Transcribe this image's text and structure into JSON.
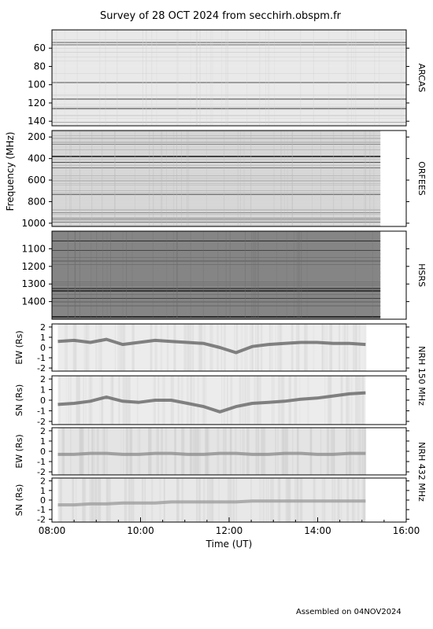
{
  "title": "Survey of 28 OCT 2024 from secchirh.obspm.fr",
  "footer": "Assembled on 04NOV2024",
  "chart_data": {
    "type": "heatmap",
    "title": "Survey of 28 OCT 2024 from secchirh.obspm.fr",
    "xlabel": "Time (UT)",
    "xlim": [
      "08:00",
      "16:00"
    ],
    "xticks": [
      "08:00",
      "10:00",
      "12:00",
      "14:00",
      "16:00"
    ],
    "freq_ylabel": "Frequency (MHz)",
    "panels": [
      {
        "id": "arcas",
        "side_label": "ARCAS",
        "ylim": [
          40,
          145
        ],
        "yticks": [
          "60",
          "80",
          "100",
          "120",
          "140"
        ],
        "data_end": "16:00",
        "colors": {
          "base": "#e9e9e9",
          "alt": "#d4d4d4",
          "dark": "#777777"
        }
      },
      {
        "id": "orfees",
        "side_label": "ORFEES",
        "ylim": [
          140,
          1030
        ],
        "yticks": [
          "200",
          "400",
          "600",
          "800",
          "1000"
        ],
        "data_end": "15:25",
        "colors": {
          "base": "#d6d6d6",
          "alt": "#b9b9b9",
          "dark": "#3a3a3a"
        }
      },
      {
        "id": "hsrs",
        "side_label": "HSRS",
        "ylim": [
          1000,
          1500
        ],
        "yticks": [
          "1100",
          "1200",
          "1300",
          "1400"
        ],
        "data_end": "15:25",
        "colors": {
          "base": "#858585",
          "alt": "#6e6e6e",
          "dark": "#2b2b2b"
        }
      },
      {
        "id": "nrh150_ew",
        "ylabel": "EW (Rs)",
        "ylim": [
          -2.3,
          2.3
        ],
        "yticks": [
          "2",
          "1",
          "0",
          "-1",
          "-2"
        ],
        "data_start": "08:08",
        "data_end": "15:05",
        "track": [
          0.6,
          0.7,
          0.5,
          0.8,
          0.3,
          0.5,
          0.7,
          0.6,
          0.5,
          0.4,
          0.0,
          -0.5,
          0.1,
          0.3,
          0.4,
          0.5,
          0.5,
          0.4,
          0.4,
          0.3
        ],
        "colors": {
          "base": "#ececec",
          "alt": "#dddddd",
          "dark": "#5c5c5c"
        }
      },
      {
        "id": "nrh150_sn",
        "ylabel": "SN (Rs)",
        "ylim": [
          -2.3,
          2.3
        ],
        "yticks": [
          "2",
          "1",
          "0",
          "-1",
          "-2"
        ],
        "data_start": "08:08",
        "data_end": "15:05",
        "track": [
          -0.4,
          -0.3,
          -0.1,
          0.3,
          -0.1,
          -0.2,
          0.0,
          0.0,
          -0.3,
          -0.6,
          -1.1,
          -0.6,
          -0.3,
          -0.2,
          -0.1,
          0.1,
          0.2,
          0.4,
          0.6,
          0.7
        ],
        "colors": {
          "base": "#ececec",
          "alt": "#dddddd",
          "dark": "#5c5c5c"
        }
      },
      {
        "id": "nrh432_ew",
        "ylabel": "EW (Rs)",
        "ylim": [
          -2.3,
          2.3
        ],
        "yticks": [
          "2",
          "1",
          "0",
          "-1",
          "-2"
        ],
        "data_start": "08:08",
        "data_end": "15:05",
        "track": [
          -0.3,
          -0.3,
          -0.2,
          -0.2,
          -0.3,
          -0.3,
          -0.2,
          -0.2,
          -0.3,
          -0.3,
          -0.2,
          -0.2,
          -0.3,
          -0.3,
          -0.2,
          -0.2,
          -0.3,
          -0.3,
          -0.2,
          -0.2
        ],
        "colors": {
          "base": "#e4e4e4",
          "alt": "#d2d2d2",
          "dark": "#8a8a8a"
        }
      },
      {
        "id": "nrh432_sn",
        "ylabel": "SN (Rs)",
        "ylim": [
          -2.3,
          2.3
        ],
        "yticks": [
          "2",
          "1",
          "0",
          "-1",
          "-2"
        ],
        "data_start": "08:08",
        "data_end": "15:05",
        "track": [
          -0.5,
          -0.5,
          -0.4,
          -0.4,
          -0.3,
          -0.3,
          -0.3,
          -0.2,
          -0.2,
          -0.2,
          -0.2,
          -0.2,
          -0.1,
          -0.1,
          -0.1,
          -0.1,
          -0.1,
          -0.1,
          -0.1,
          -0.1
        ],
        "colors": {
          "base": "#e8e8e8",
          "alt": "#d8d8d8",
          "dark": "#9a9a9a"
        }
      }
    ],
    "group_labels": [
      {
        "id": "nrh150",
        "text": "NRH 150 MHz"
      },
      {
        "id": "nrh432",
        "text": "NRH 432 MHz"
      }
    ]
  }
}
